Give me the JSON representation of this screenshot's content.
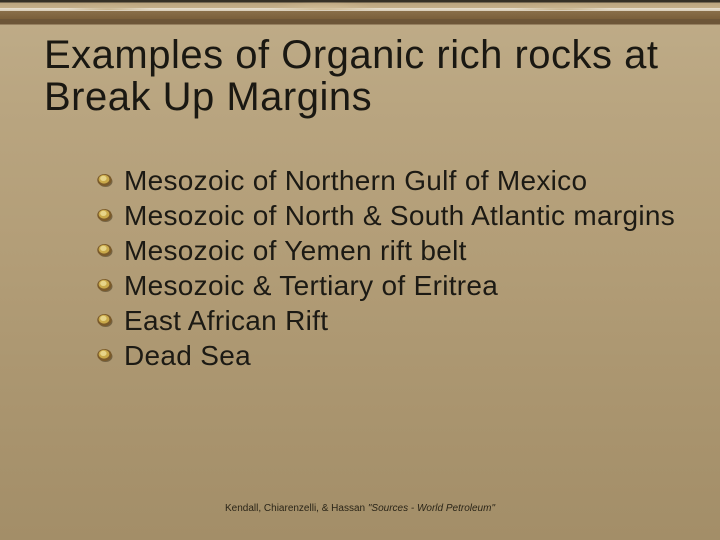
{
  "slide": {
    "title": "Examples of Organic rich rocks at Break Up Margins",
    "title_color": "#1a1812",
    "title_fontsize": 40,
    "background_gradient": [
      "#beab87",
      "#a38e68"
    ],
    "top_band_colors": [
      "#353026",
      "#c5b08a",
      "#8a6f4a",
      "#6d5638"
    ],
    "bullets": [
      "Mesozoic of Northern Gulf of Mexico",
      "Mesozoic of North & South Atlantic margins",
      "Mesozoic of Yemen rift belt",
      "Mesozoic & Tertiary of Eritrea",
      "East African Rift",
      "Dead Sea"
    ],
    "bullet_text_color": "#1c1a14",
    "bullet_fontsize": 28,
    "bullet_icon": {
      "type": "layered-swirl",
      "colors": {
        "outer": "#7a5a2a",
        "mid": "#c9a94a",
        "inner": "#e6d488",
        "shadow": "#3a2e16"
      }
    },
    "footer": {
      "names": "Kendall, Chiarenzelli,  & Hassan ",
      "work": "\"Sources - World Petroleum\"",
      "fontsize": 10,
      "color": "#2a2518"
    }
  }
}
